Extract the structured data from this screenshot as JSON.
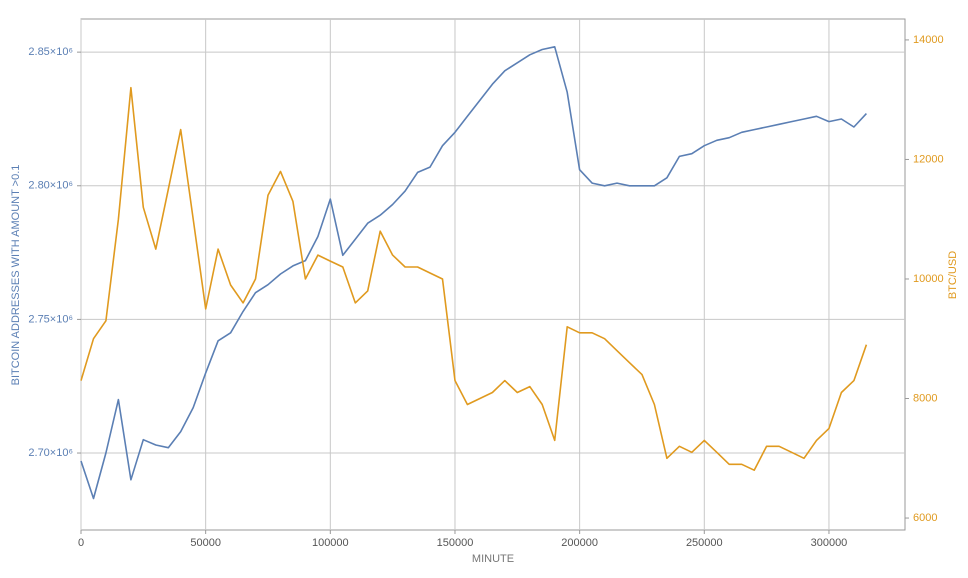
{
  "chart_data": {
    "type": "line",
    "x_label": "MINUTE",
    "y_label": "BITCOIN ADDRESSES WITH AMOUNT >0.1",
    "y2_label": "BTC/USD",
    "x": [
      0,
      5000,
      10000,
      15000,
      20000,
      25000,
      30000,
      35000,
      40000,
      45000,
      50000,
      55000,
      60000,
      65000,
      70000,
      75000,
      80000,
      85000,
      90000,
      95000,
      100000,
      105000,
      110000,
      115000,
      120000,
      125000,
      130000,
      135000,
      140000,
      145000,
      150000,
      155000,
      160000,
      165000,
      170000,
      175000,
      180000,
      185000,
      190000,
      195000,
      200000,
      205000,
      210000,
      215000,
      220000,
      225000,
      230000,
      235000,
      240000,
      245000,
      250000,
      255000,
      260000,
      265000,
      270000,
      275000,
      280000,
      285000,
      290000,
      295000,
      300000,
      305000,
      310000,
      315000
    ],
    "series": [
      {
        "name": "BITCOIN ADDRESSES WITH AMOUNT >0.1",
        "color": "#5b7fb4",
        "axis": "y",
        "values": [
          2697000,
          2683000,
          2700000,
          2720000,
          2690000,
          2705000,
          2703000,
          2702000,
          2708000,
          2717000,
          2730000,
          2742000,
          2745000,
          2753000,
          2760000,
          2763000,
          2767000,
          2770000,
          2772000,
          2781000,
          2795000,
          2774000,
          2780000,
          2786000,
          2789000,
          2793000,
          2798000,
          2805000,
          2807000,
          2815000,
          2820000,
          2826000,
          2832000,
          2838000,
          2843000,
          2846000,
          2849000,
          2851000,
          2852000,
          2835000,
          2806000,
          2801000,
          2800000,
          2801000,
          2800000,
          2800000,
          2800000,
          2803000,
          2811000,
          2812000,
          2815000,
          2817000,
          2818000,
          2820000,
          2821000,
          2822000,
          2823000,
          2824000,
          2825000,
          2826000,
          2824000,
          2825000,
          2822000,
          2827000
        ]
      },
      {
        "name": "BTC/USD",
        "color": "#e09a1f",
        "axis": "y2",
        "values": [
          8300,
          9000,
          9300,
          11000,
          13200,
          11200,
          10500,
          11500,
          12500,
          11000,
          9500,
          10500,
          9900,
          9600,
          10000,
          11400,
          11800,
          11300,
          10000,
          10400,
          10300,
          10200,
          9600,
          9800,
          10800,
          10400,
          10200,
          10200,
          10100,
          10000,
          8300,
          7900,
          8000,
          8100,
          8300,
          8100,
          8200,
          7900,
          7300,
          9200,
          9100,
          9100,
          9000,
          8800,
          8600,
          8400,
          7900,
          7000,
          7200,
          7100,
          7300,
          7100,
          6900,
          6900,
          6800,
          7200,
          7200,
          7100,
          7000,
          7300,
          7500,
          8100,
          8300,
          8900
        ]
      }
    ],
    "xlim": [
      0,
      330500
    ],
    "xticks": [
      0,
      50000,
      100000,
      150000,
      200000,
      250000,
      300000
    ],
    "ylim": [
      2671200,
      2862400
    ],
    "yticks": [
      {
        "value": 2700000,
        "label": "2.70×10⁶"
      },
      {
        "value": 2750000,
        "label": "2.75×10⁶"
      },
      {
        "value": 2800000,
        "label": "2.80×10⁶"
      },
      {
        "value": 2850000,
        "label": "2.85×10⁶"
      }
    ],
    "y2lim": [
      5800,
      14350
    ],
    "y2ticks": [
      6000,
      8000,
      10000,
      12000,
      14000
    ],
    "grid": true
  }
}
